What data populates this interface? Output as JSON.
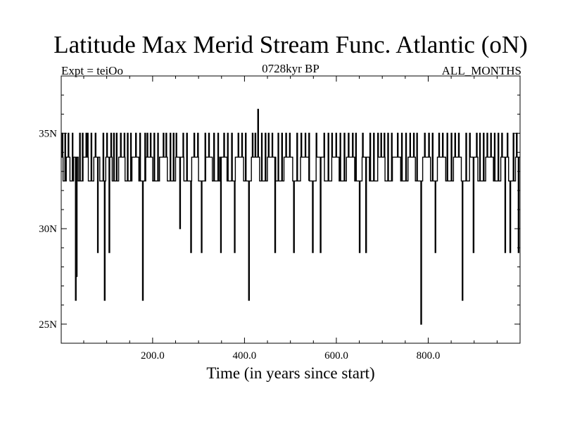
{
  "chart_data": {
    "type": "line",
    "title": "Latitude Max Merid Stream Func. Atlantic (oN)",
    "subtitle_left": "Expt = teiOo",
    "subtitle_center": "0728kyr BP",
    "subtitle_right": "ALL_MONTHS",
    "xlabel": "Time (in years since start)",
    "ylabel": "",
    "xlim": [
      1,
      1000
    ],
    "ylim": [
      24,
      38
    ],
    "xticks": [
      200,
      400,
      600,
      800
    ],
    "xtick_labels": [
      "200.0",
      "400.0",
      "600.0",
      "800.0"
    ],
    "yticks": [
      25,
      30,
      35
    ],
    "ytick_labels": [
      "25N",
      "30N",
      "35N"
    ],
    "levels": [
      32.5,
      33.75,
      35
    ],
    "series": [
      {
        "name": "latitude_max_streamfunction",
        "baseline": [
          [
            1,
            33.75
          ],
          [
            5,
            32.5
          ],
          [
            12,
            33.75
          ],
          [
            20,
            32.5
          ],
          [
            28,
            33.75
          ],
          [
            38,
            32.5
          ],
          [
            48,
            33.75
          ],
          [
            60,
            32.5
          ],
          [
            72,
            33.75
          ],
          [
            85,
            32.5
          ],
          [
            98,
            33.75
          ],
          [
            112,
            32.5
          ],
          [
            126,
            33.75
          ],
          [
            140,
            32.5
          ],
          [
            155,
            33.75
          ],
          [
            170,
            32.5
          ],
          [
            185,
            33.75
          ],
          [
            200,
            32.5
          ],
          [
            215,
            33.75
          ],
          [
            232,
            32.5
          ],
          [
            250,
            33.75
          ],
          [
            268,
            32.5
          ],
          [
            285,
            33.75
          ],
          [
            300,
            32.5
          ],
          [
            315,
            33.75
          ],
          [
            330,
            32.5
          ],
          [
            346,
            33.75
          ],
          [
            362,
            32.5
          ],
          [
            380,
            33.75
          ],
          [
            398,
            32.5
          ],
          [
            415,
            33.75
          ],
          [
            433,
            32.5
          ],
          [
            450,
            33.75
          ],
          [
            468,
            32.5
          ],
          [
            486,
            33.75
          ],
          [
            505,
            32.5
          ],
          [
            522,
            33.75
          ],
          [
            540,
            32.5
          ],
          [
            556,
            33.75
          ],
          [
            574,
            32.5
          ],
          [
            590,
            33.75
          ],
          [
            606,
            32.5
          ],
          [
            622,
            33.75
          ],
          [
            640,
            32.5
          ],
          [
            656,
            33.75
          ],
          [
            672,
            32.5
          ],
          [
            690,
            33.75
          ],
          [
            706,
            32.5
          ],
          [
            722,
            33.75
          ],
          [
            740,
            32.5
          ],
          [
            756,
            33.75
          ],
          [
            772,
            32.5
          ],
          [
            788,
            33.75
          ],
          [
            805,
            32.5
          ],
          [
            820,
            33.75
          ],
          [
            838,
            32.5
          ],
          [
            855,
            33.75
          ],
          [
            872,
            32.5
          ],
          [
            890,
            33.75
          ],
          [
            908,
            32.5
          ],
          [
            925,
            33.75
          ],
          [
            942,
            32.5
          ],
          [
            958,
            33.75
          ],
          [
            975,
            32.5
          ],
          [
            990,
            33.75
          ],
          [
            1000,
            33.75
          ]
        ],
        "spikes": [
          [
            3,
            35
          ],
          [
            9,
            35
          ],
          [
            16,
            35
          ],
          [
            25,
            35
          ],
          [
            32,
            26.25
          ],
          [
            34,
            27.5
          ],
          [
            41,
            35
          ],
          [
            47,
            35
          ],
          [
            55,
            35
          ],
          [
            58,
            35
          ],
          [
            66,
            35
          ],
          [
            75,
            35
          ],
          [
            80,
            28.75
          ],
          [
            92,
            35
          ],
          [
            95,
            26.25
          ],
          [
            100,
            35
          ],
          [
            105,
            28.75
          ],
          [
            109,
            35
          ],
          [
            115,
            35
          ],
          [
            121,
            35
          ],
          [
            130,
            35
          ],
          [
            138,
            35
          ],
          [
            145,
            35
          ],
          [
            152,
            35
          ],
          [
            163,
            35
          ],
          [
            172,
            35
          ],
          [
            178,
            26.25
          ],
          [
            183,
            35
          ],
          [
            188,
            35
          ],
          [
            195,
            35
          ],
          [
            203,
            35
          ],
          [
            211,
            35
          ],
          [
            223,
            35
          ],
          [
            229,
            35
          ],
          [
            238,
            35
          ],
          [
            245,
            35
          ],
          [
            251,
            35
          ],
          [
            259,
            30
          ],
          [
            266,
            35
          ],
          [
            274,
            35
          ],
          [
            283,
            28.75
          ],
          [
            290,
            35
          ],
          [
            298,
            35
          ],
          [
            306,
            28.75
          ],
          [
            314,
            35
          ],
          [
            322,
            35
          ],
          [
            333,
            35
          ],
          [
            342,
            35
          ],
          [
            348,
            28.75
          ],
          [
            355,
            35
          ],
          [
            363,
            35
          ],
          [
            372,
            35
          ],
          [
            378,
            28.75
          ],
          [
            386,
            35
          ],
          [
            394,
            35
          ],
          [
            402,
            35
          ],
          [
            409,
            26.25
          ],
          [
            417,
            35
          ],
          [
            423,
            35
          ],
          [
            429,
            36.25
          ],
          [
            437,
            35
          ],
          [
            445,
            35
          ],
          [
            452,
            35
          ],
          [
            460,
            35
          ],
          [
            466,
            28.75
          ],
          [
            473,
            35
          ],
          [
            481,
            35
          ],
          [
            490,
            35
          ],
          [
            498,
            35
          ],
          [
            507,
            28.75
          ],
          [
            514,
            35
          ],
          [
            523,
            35
          ],
          [
            532,
            35
          ],
          [
            540,
            35
          ],
          [
            548,
            28.75
          ],
          [
            556,
            35
          ],
          [
            565,
            28.75
          ],
          [
            573,
            35
          ],
          [
            582,
            35
          ],
          [
            590,
            35
          ],
          [
            599,
            35
          ],
          [
            608,
            35
          ],
          [
            617,
            35
          ],
          [
            626,
            35
          ],
          [
            635,
            35
          ],
          [
            642,
            35
          ],
          [
            650,
            28.75
          ],
          [
            657,
            35
          ],
          [
            664,
            28.75
          ],
          [
            673,
            35
          ],
          [
            681,
            35
          ],
          [
            690,
            35
          ],
          [
            697,
            35
          ],
          [
            704,
            35
          ],
          [
            712,
            35
          ],
          [
            720,
            35
          ],
          [
            733,
            35
          ],
          [
            742,
            35
          ],
          [
            751,
            35
          ],
          [
            760,
            35
          ],
          [
            768,
            35
          ],
          [
            775,
            35
          ],
          [
            784,
            25
          ],
          [
            792,
            35
          ],
          [
            801,
            35
          ],
          [
            809,
            35
          ],
          [
            815,
            28.75
          ],
          [
            823,
            35
          ],
          [
            831,
            35
          ],
          [
            841,
            35
          ],
          [
            850,
            35
          ],
          [
            858,
            35
          ],
          [
            866,
            35
          ],
          [
            874,
            26.25
          ],
          [
            882,
            35
          ],
          [
            890,
            35
          ],
          [
            898,
            28.75
          ],
          [
            905,
            35
          ],
          [
            912,
            35
          ],
          [
            920,
            35
          ],
          [
            928,
            35
          ],
          [
            936,
            35
          ],
          [
            944,
            35
          ],
          [
            952,
            35
          ],
          [
            960,
            35
          ],
          [
            967,
            28.75
          ],
          [
            972,
            35
          ],
          [
            978,
            28.75
          ],
          [
            985,
            35
          ],
          [
            992,
            35
          ],
          [
            996,
            28.75
          ]
        ]
      }
    ]
  }
}
